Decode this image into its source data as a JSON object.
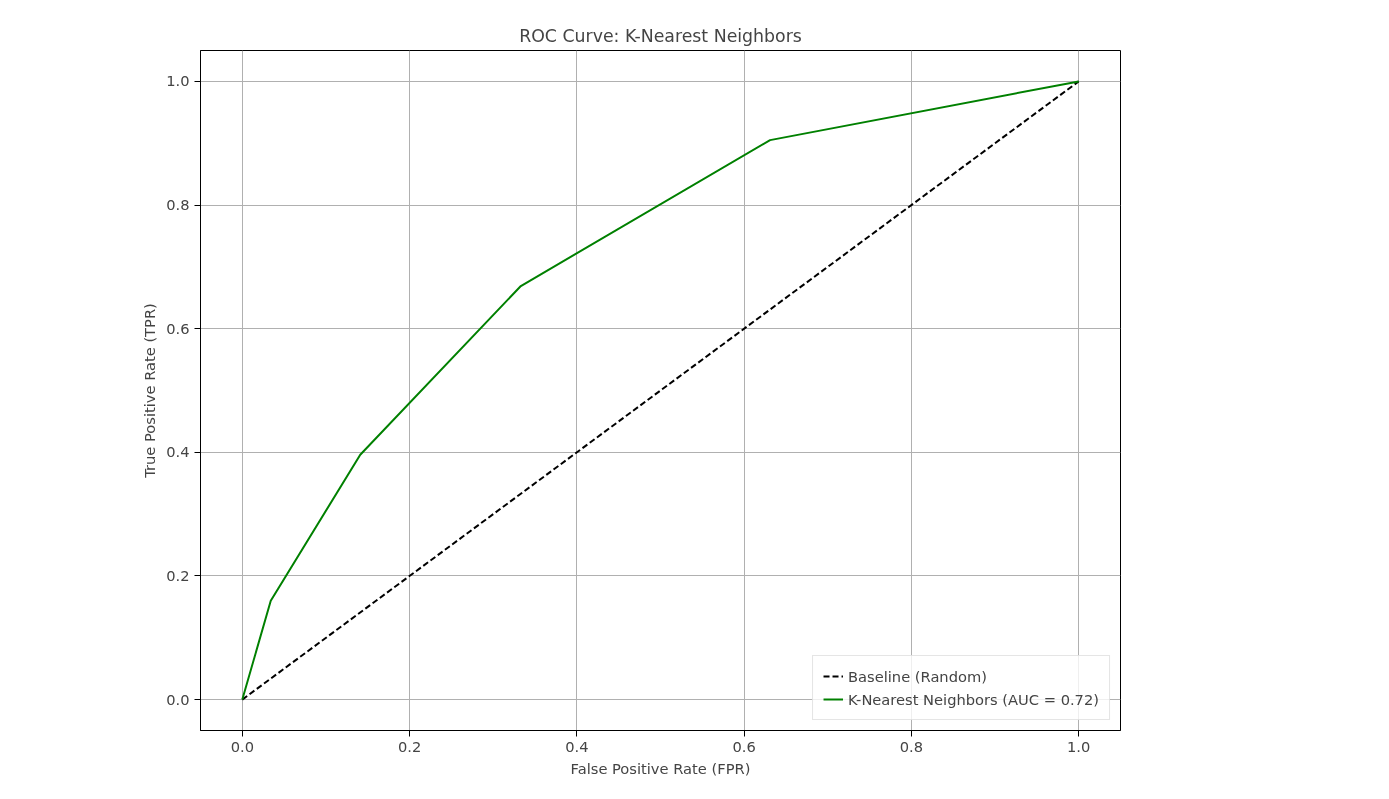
{
  "chart_data": {
    "type": "line",
    "title": "ROC Curve: K-Nearest Neighbors",
    "xlabel": "False Positive Rate (FPR)",
    "ylabel": "True Positive Rate (TPR)",
    "series": [
      {
        "name": "Baseline (Random)",
        "color": "#000000",
        "x": [
          0,
          1
        ],
        "values": [
          0,
          1
        ],
        "line_style": "dashed"
      },
      {
        "name": "K-Nearest Neighbors (AUC = 0.72)",
        "color": "#008000",
        "x": [
          0,
          0.034,
          0.141,
          0.333,
          0.631,
          1
        ],
        "values": [
          0,
          0.16,
          0.396,
          0.669,
          0.905,
          1
        ],
        "line_style": "solid"
      }
    ],
    "xlim": [
      -0.05,
      1.05
    ],
    "ylim": [
      -0.05,
      1.05
    ],
    "xticks": [
      {
        "value": 0,
        "label": "0.0"
      },
      0.2,
      0.4,
      0.6,
      0.8,
      {
        "value": 1,
        "label": "1.0"
      }
    ],
    "yticks": [
      {
        "value": 0,
        "label": "0.0"
      },
      0.2,
      0.4,
      0.6,
      0.8,
      {
        "value": 1,
        "label": "1.0"
      }
    ],
    "grid": true,
    "legend": "bottom right"
  }
}
